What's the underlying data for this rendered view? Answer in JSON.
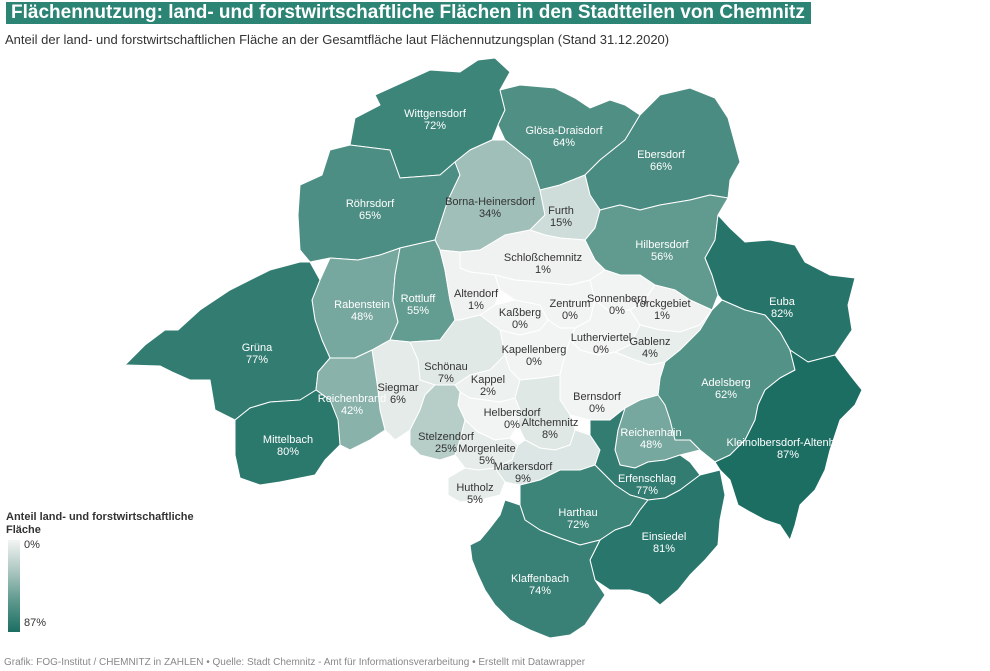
{
  "title": "Flächennutzung: land- und forstwirtschaftliche Flächen in den Stadtteilen von Chemnitz",
  "subtitle": "Anteil der land- und forstwirtschaftlichen Fläche an der Gesamtfläche laut Flächennutzungsplan (Stand 31.12.2020)",
  "legend": {
    "title": "Anteil land- und forstwirtschaftliche Fläche",
    "min_label": "0%",
    "max_label": "87%",
    "min": 0,
    "max": 87
  },
  "districts": [
    {
      "name": "Wittgensdorf",
      "label": "72%",
      "value": 72
    },
    {
      "name": "Glösa-Draisdorf",
      "label": "64%",
      "value": 64
    },
    {
      "name": "Ebersdorf",
      "label": "66%",
      "value": 66
    },
    {
      "name": "Röhrsdorf",
      "label": "65%",
      "value": 65
    },
    {
      "name": "Borna-Heinersdorf",
      "label": "34%",
      "value": 34
    },
    {
      "name": "Furth",
      "label": "15%",
      "value": 15
    },
    {
      "name": "Hilbersdorf",
      "label": "56%",
      "value": 56
    },
    {
      "name": "Schloßchemnitz",
      "label": "1%",
      "value": 1
    },
    {
      "name": "Rabenstein",
      "label": "48%",
      "value": 48
    },
    {
      "name": "Rottluff",
      "label": "55%",
      "value": 55
    },
    {
      "name": "Altendorf",
      "label": "1%",
      "value": 1
    },
    {
      "name": "Kaßberg",
      "label": "0%",
      "value": 0
    },
    {
      "name": "Zentrum",
      "label": "0%",
      "value": 0
    },
    {
      "name": "Sonnenberg",
      "label": "0%",
      "value": 0
    },
    {
      "name": "Yorckgebiet",
      "label": "1%",
      "value": 1
    },
    {
      "name": "Euba",
      "label": "82%",
      "value": 82
    },
    {
      "name": "Grüna",
      "label": "77%",
      "value": 77
    },
    {
      "name": "Lutherviertel",
      "label": "0%",
      "value": 0
    },
    {
      "name": "Gablenz",
      "label": "4%",
      "value": 4
    },
    {
      "name": "Kapellenberg",
      "label": "0%",
      "value": 0
    },
    {
      "name": "Schönau",
      "label": "7%",
      "value": 7
    },
    {
      "name": "Siegmar",
      "label": "6%",
      "value": 6
    },
    {
      "name": "Kappel",
      "label": "2%",
      "value": 2
    },
    {
      "name": "Adelsberg",
      "label": "62%",
      "value": 62
    },
    {
      "name": "Reichenbrand",
      "label": "42%",
      "value": 42
    },
    {
      "name": "Bernsdorf",
      "label": "0%",
      "value": 0
    },
    {
      "name": "Helbersdorf",
      "label": "0%",
      "value": 0
    },
    {
      "name": "Altchemnitz",
      "label": "8%",
      "value": 8
    },
    {
      "name": "Stelzendorf",
      "label": "25%",
      "value": 25
    },
    {
      "name": "Reichenhain",
      "label": "48%",
      "value": 48
    },
    {
      "name": "Mittelbach",
      "label": "80%",
      "value": 80
    },
    {
      "name": "Kleinolbersdorf-Altenhain",
      "label": "87%",
      "value": 87
    },
    {
      "name": "Morgenleite",
      "label": "5%",
      "value": 5
    },
    {
      "name": "Markersdorf",
      "label": "9%",
      "value": 9
    },
    {
      "name": "Erfenschlag",
      "label": "77%",
      "value": 77
    },
    {
      "name": "Hutholz",
      "label": "5%",
      "value": 5
    },
    {
      "name": "Harthau",
      "label": "72%",
      "value": 72
    },
    {
      "name": "Einsiedel",
      "label": "81%",
      "value": 81
    },
    {
      "name": "Klaffenbach",
      "label": "74%",
      "value": 74
    }
  ],
  "footer": "Grafik: FOG-Institut / CHEMNITZ in ZAHLEN • Quelle: Stadt Chemnitz - Amt für Informationsverarbeitung • Erstellt mit Datawrapper",
  "colors": {
    "title_band": "#2c8475",
    "scale_low": "#f2f4f3",
    "scale_high": "#1c6e63"
  }
}
